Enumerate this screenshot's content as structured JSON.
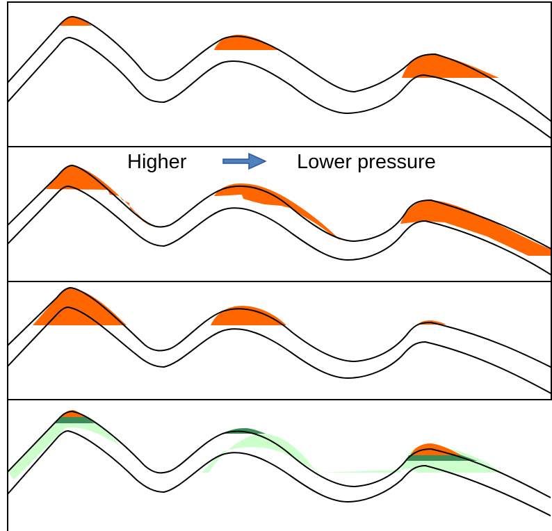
{
  "header": {
    "left_label": "Higher",
    "right_label": "Lower pressure",
    "arrow_icon": "right-arrow-icon"
  },
  "colors": {
    "oil": "#ff6600",
    "water": "#ccffcc",
    "contact": "#3c8c5a",
    "arrow": "#4f81bd",
    "line": "#000000"
  },
  "panels": [
    {
      "id": "panel-1",
      "fluids": [
        "oil"
      ]
    },
    {
      "id": "panel-2",
      "fluids": [
        "oil"
      ]
    },
    {
      "id": "panel-3",
      "fluids": [
        "oil"
      ]
    },
    {
      "id": "panel-4",
      "fluids": [
        "oil",
        "water",
        "oil-water-contact"
      ]
    }
  ]
}
